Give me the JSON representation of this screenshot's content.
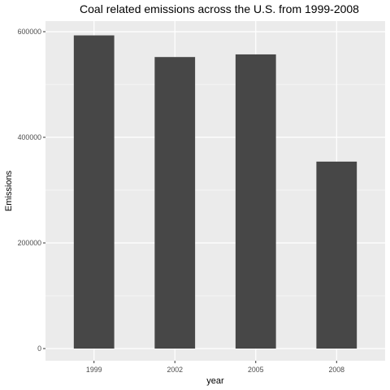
{
  "chart_data": {
    "type": "bar",
    "title": "Coal related emissions across the U.S. from 1999-2008",
    "xlabel": "year",
    "ylabel": "Emissions",
    "categories": [
      "1999",
      "2002",
      "2005",
      "2008"
    ],
    "values": [
      593000,
      552000,
      557000,
      354000
    ],
    "ylim": [
      0,
      615000
    ],
    "yticks": [
      0,
      200000,
      400000,
      600000
    ],
    "ytick_labels": [
      "0",
      "200000",
      "400000",
      "600000"
    ],
    "grid": true,
    "bar_color": "#474747",
    "panel_color": "#ebebeb",
    "grid_color": "#ffffff"
  }
}
